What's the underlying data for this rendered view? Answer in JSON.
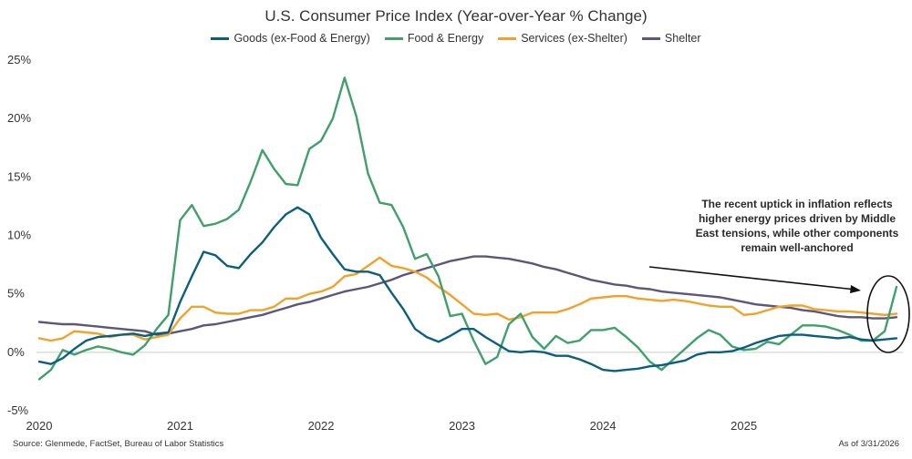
{
  "colors": {
    "goods": "#0b5f7e",
    "food_energy": "#3fa06a",
    "services": "#f2a22b",
    "shelter": "#5b567a",
    "zero_line": "#cccccc",
    "text": "#333333"
  },
  "footer": {
    "source": "Source: Glenmede, FactSet, Bureau of Labor Statistics",
    "as_of": "As of 3/31/2026"
  },
  "annotation": {
    "text": "The recent uptick in inflation reflects higher energy prices driven by Middle East tensions, while other components remain well-anchored"
  },
  "chart_data": {
    "type": "line",
    "title": "U.S. Consumer Price Index (Year-over-Year % Change)",
    "xlabel": "",
    "ylabel": "",
    "x_ticks": [
      "2020",
      "2021",
      "2022",
      "2023",
      "2024",
      "2025"
    ],
    "y_ticks": [
      "25%",
      "20%",
      "15%",
      "10%",
      "5%",
      "0%",
      "-5%"
    ],
    "xlim": [
      "2020-01",
      "2026-02"
    ],
    "ylim": [
      -5,
      25
    ],
    "legend_position": "top",
    "grid": false,
    "x": [
      "2020-01",
      "2020-02",
      "2020-03",
      "2020-04",
      "2020-05",
      "2020-06",
      "2020-07",
      "2020-08",
      "2020-09",
      "2020-10",
      "2020-11",
      "2020-12",
      "2021-01",
      "2021-02",
      "2021-03",
      "2021-04",
      "2021-05",
      "2021-06",
      "2021-07",
      "2021-08",
      "2021-09",
      "2021-10",
      "2021-11",
      "2021-12",
      "2022-01",
      "2022-02",
      "2022-03",
      "2022-04",
      "2022-05",
      "2022-06",
      "2022-07",
      "2022-08",
      "2022-09",
      "2022-10",
      "2022-11",
      "2022-12",
      "2023-01",
      "2023-02",
      "2023-03",
      "2023-04",
      "2023-05",
      "2023-06",
      "2023-07",
      "2023-08",
      "2023-09",
      "2023-10",
      "2023-11",
      "2023-12",
      "2024-01",
      "2024-02",
      "2024-03",
      "2024-04",
      "2024-05",
      "2024-06",
      "2024-07",
      "2024-08",
      "2024-09",
      "2024-10",
      "2024-11",
      "2024-12",
      "2025-01",
      "2025-02",
      "2025-03",
      "2025-04",
      "2025-05",
      "2025-06",
      "2025-07",
      "2025-08",
      "2025-09",
      "2025-10",
      "2025-11",
      "2025-12",
      "2026-01",
      "2026-02"
    ],
    "series": [
      {
        "name": "Goods (ex-Food & Energy)",
        "values": [
          -0.8,
          -1.0,
          -0.5,
          0.3,
          1.0,
          1.3,
          1.4,
          1.5,
          1.6,
          1.4,
          1.6,
          1.7,
          4.3,
          6.5,
          8.6,
          8.3,
          7.4,
          7.2,
          8.4,
          9.4,
          10.7,
          11.8,
          12.4,
          11.8,
          9.8,
          8.4,
          7.1,
          6.9,
          6.9,
          6.6,
          5.1,
          3.7,
          2.0,
          1.3,
          0.9,
          1.4,
          2.0,
          2.0,
          1.3,
          0.7,
          0.1,
          0.0,
          0.1,
          0.0,
          -0.3,
          -0.3,
          -0.6,
          -1.0,
          -1.5,
          -1.6,
          -1.5,
          -1.4,
          -1.2,
          -1.1,
          -0.9,
          -0.7,
          -0.2,
          0.0,
          0.0,
          0.1,
          0.4,
          0.8,
          1.1,
          1.4,
          1.5,
          1.5,
          1.4,
          1.3,
          1.2,
          1.3,
          1.1,
          1.0,
          1.1,
          1.2
        ]
      },
      {
        "name": "Food & Energy",
        "values": [
          -2.3,
          -1.5,
          0.2,
          -0.2,
          0.2,
          0.5,
          0.3,
          0.0,
          -0.2,
          0.6,
          2.0,
          3.2,
          11.3,
          12.6,
          10.8,
          11.0,
          11.4,
          12.2,
          14.6,
          17.3,
          15.7,
          14.4,
          14.3,
          17.4,
          18.1,
          20.0,
          23.5,
          20.2,
          15.3,
          12.8,
          12.6,
          10.7,
          8.0,
          8.4,
          6.5,
          3.1,
          3.3,
          1.0,
          -1.0,
          -0.4,
          2.4,
          3.3,
          1.3,
          0.3,
          1.4,
          0.8,
          1.0,
          1.9,
          1.9,
          2.1,
          1.3,
          0.4,
          -0.8,
          -1.5,
          -0.6,
          0.3,
          1.2,
          1.9,
          1.5,
          0.5,
          0.2,
          0.3,
          0.9,
          0.7,
          1.5,
          2.3,
          2.3,
          2.2,
          1.9,
          1.5,
          1.0,
          1.0,
          1.8,
          5.6
        ]
      },
      {
        "name": "Services (ex-Shelter)",
        "values": [
          1.2,
          1.0,
          1.2,
          1.8,
          1.7,
          1.6,
          1.3,
          1.5,
          1.5,
          1.1,
          1.3,
          1.5,
          2.9,
          3.9,
          3.9,
          3.4,
          3.3,
          3.3,
          3.6,
          3.6,
          3.9,
          4.6,
          4.6,
          5.0,
          5.2,
          5.6,
          6.5,
          6.7,
          7.4,
          8.1,
          7.4,
          7.2,
          6.9,
          6.4,
          5.6,
          4.9,
          4.1,
          3.3,
          3.2,
          3.3,
          2.8,
          3.0,
          3.4,
          3.4,
          3.4,
          3.7,
          4.1,
          4.6,
          4.7,
          4.8,
          4.8,
          4.6,
          4.5,
          4.4,
          4.5,
          4.4,
          4.2,
          4.0,
          3.9,
          3.9,
          3.2,
          3.3,
          3.6,
          3.9,
          4.0,
          4.0,
          3.7,
          3.6,
          3.5,
          3.5,
          3.4,
          3.3,
          3.2,
          3.3
        ]
      },
      {
        "name": "Shelter",
        "values": [
          2.6,
          2.5,
          2.4,
          2.4,
          2.3,
          2.2,
          2.1,
          2.0,
          1.9,
          1.8,
          1.5,
          1.6,
          1.8,
          2.0,
          2.3,
          2.4,
          2.6,
          2.8,
          3.0,
          3.2,
          3.5,
          3.8,
          4.1,
          4.3,
          4.6,
          4.9,
          5.2,
          5.4,
          5.6,
          5.9,
          6.2,
          6.6,
          6.9,
          7.2,
          7.5,
          7.8,
          8.0,
          8.2,
          8.2,
          8.1,
          8.0,
          7.8,
          7.6,
          7.3,
          7.1,
          6.8,
          6.5,
          6.2,
          6.0,
          5.8,
          5.7,
          5.5,
          5.4,
          5.2,
          5.1,
          5.0,
          4.9,
          4.8,
          4.7,
          4.5,
          4.3,
          4.1,
          4.0,
          3.9,
          3.8,
          3.6,
          3.5,
          3.3,
          3.1,
          3.0,
          3.0,
          2.9,
          2.9,
          3.0
        ]
      }
    ],
    "annotation": "The recent uptick in inflation reflects higher energy prices driven by Middle East tensions, while other components remain well-anchored"
  }
}
